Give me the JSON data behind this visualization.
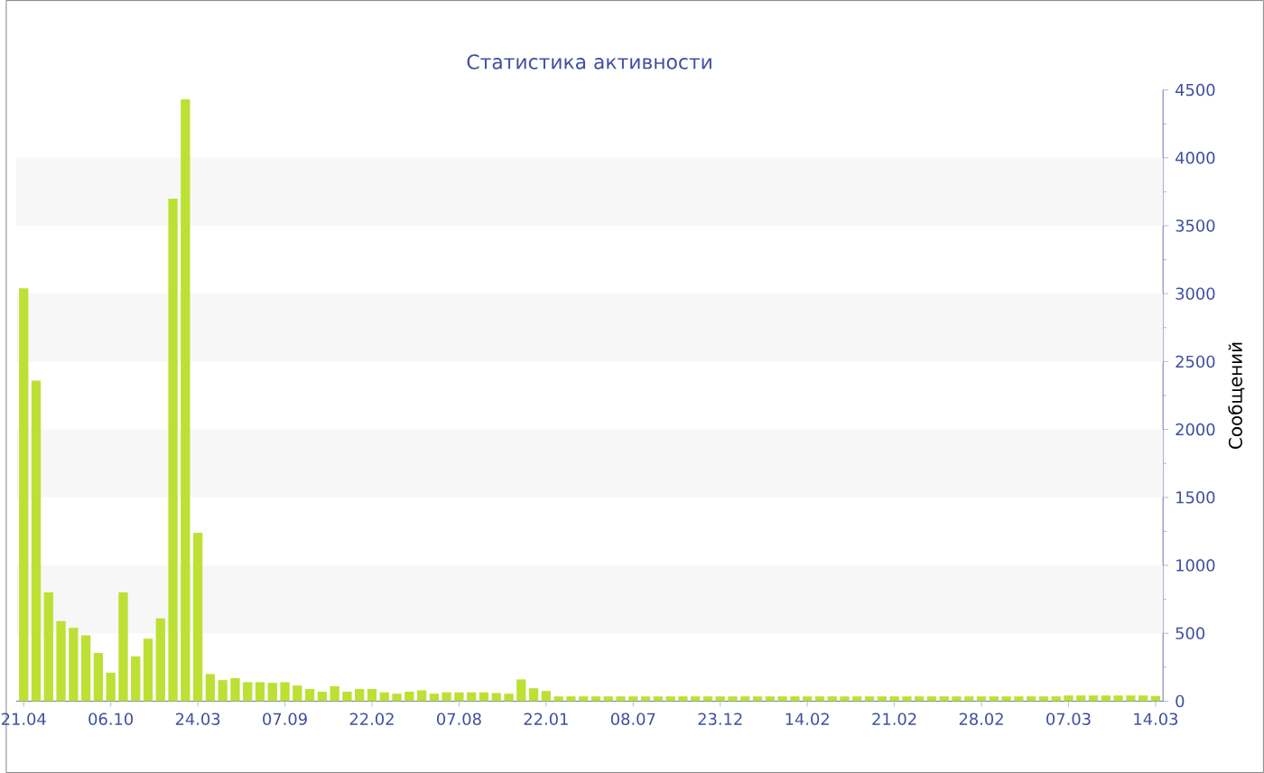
{
  "chart_data": {
    "type": "bar",
    "title": "Статистика активности",
    "ylabel": "Сообщений",
    "categories": [
      "21.04",
      null,
      null,
      null,
      null,
      null,
      null,
      "06.10",
      null,
      null,
      null,
      null,
      null,
      null,
      "24.03",
      null,
      null,
      null,
      null,
      null,
      null,
      "07.09",
      null,
      null,
      null,
      null,
      null,
      null,
      "22.02",
      null,
      null,
      null,
      null,
      null,
      null,
      "07.08",
      null,
      null,
      null,
      null,
      null,
      null,
      "22.01",
      null,
      null,
      null,
      null,
      null,
      null,
      "08.07",
      null,
      null,
      null,
      null,
      null,
      null,
      "23.12",
      null,
      null,
      null,
      null,
      null,
      null,
      "14.02",
      null,
      null,
      null,
      null,
      null,
      null,
      "21.02",
      null,
      null,
      null,
      null,
      null,
      null,
      "28.02",
      null,
      null,
      null,
      null,
      null,
      null,
      "07.03",
      null,
      null,
      null,
      null,
      null,
      null,
      "14.03"
    ],
    "values": [
      3040,
      2360,
      800,
      590,
      540,
      485,
      355,
      210,
      800,
      330,
      460,
      610,
      3700,
      4430,
      1240,
      200,
      155,
      170,
      140,
      140,
      135,
      140,
      115,
      90,
      70,
      110,
      70,
      90,
      90,
      65,
      55,
      70,
      80,
      55,
      65,
      65,
      65,
      65,
      60,
      55,
      160,
      95,
      75,
      35,
      35,
      35,
      35,
      35,
      35,
      35,
      35,
      35,
      35,
      35,
      35,
      35,
      35,
      35,
      35,
      35,
      35,
      35,
      35,
      35,
      35,
      35,
      35,
      35,
      35,
      35,
      35,
      35,
      35,
      35,
      35,
      35,
      35,
      35,
      35,
      35,
      35,
      35,
      35,
      35,
      42,
      42,
      42,
      42,
      42,
      42,
      42,
      38
    ],
    "color": "#bde035",
    "ylim": [
      0,
      4500
    ],
    "yticks": [
      0,
      500,
      1000,
      1500,
      2000,
      2500,
      3000,
      3500,
      4000,
      4500
    ],
    "bands": [
      {
        "axis": "y",
        "from": 500,
        "to": 1000,
        "color": "#f7f7f7"
      },
      {
        "axis": "y",
        "from": 1500,
        "to": 2000,
        "color": "#f7f7f7"
      },
      {
        "axis": "y",
        "from": 2500,
        "to": 3000,
        "color": "#f7f7f7"
      },
      {
        "axis": "y",
        "from": 3500,
        "to": 4000,
        "color": "#f7f7f7"
      }
    ]
  }
}
